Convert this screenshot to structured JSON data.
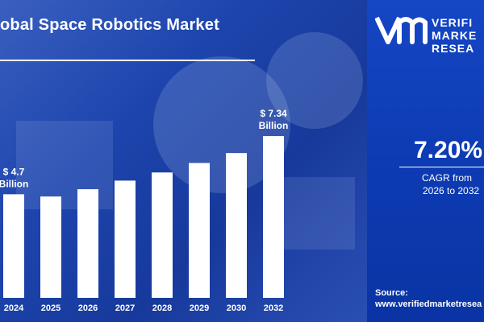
{
  "header": {
    "title": "obal Space Robotics Market"
  },
  "chart_data": {
    "type": "bar",
    "categories": [
      "2024",
      "2025",
      "2026",
      "2027",
      "2028",
      "2029",
      "2030",
      "2032"
    ],
    "values": [
      4.7,
      4.6,
      4.93,
      5.32,
      5.69,
      6.12,
      6.57,
      7.34
    ],
    "ylim": [
      0,
      8.0
    ],
    "annotations": [
      {
        "category": "2024",
        "line1": "$ 4.7",
        "line2": "Billion"
      },
      {
        "category": "2032",
        "line1": "$ 7.34",
        "line2": "Billion"
      }
    ],
    "bar_color": "#ffffff",
    "grid": false
  },
  "sidebar": {
    "logo_lines": [
      "VERIFI",
      "MARKE",
      "RESEA"
    ],
    "cagr_value": "7.20%",
    "cagr_label": "CAGR from",
    "cagr_range": "2026 to 2032",
    "source_label": "Source:",
    "source_url": "www.verifiedmarketresea"
  },
  "colors": {
    "background_left": "#1d45ad",
    "background_right": "#0d3bb3",
    "text": "#ffffff"
  }
}
